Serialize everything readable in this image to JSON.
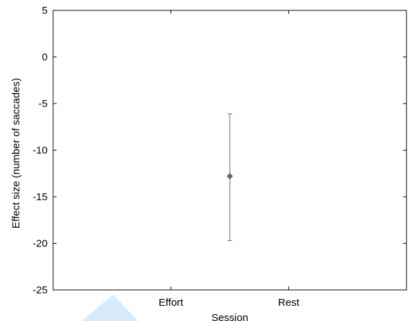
{
  "chart_data": {
    "type": "scatter",
    "title": "",
    "xlabel": "Session",
    "ylabel": "Effect size (number of saccades)",
    "categories": [
      "Effort",
      "Rest"
    ],
    "ylim": [
      -25,
      5
    ],
    "yticks": [
      5,
      0,
      -5,
      -10,
      -15,
      -20,
      -25
    ],
    "grid": false,
    "series": [
      {
        "x": 1.5,
        "y": -12.8,
        "error_low": -19.7,
        "error_high": -6.1,
        "marker": "diamond",
        "color": "#666666"
      }
    ]
  },
  "colors": {
    "marker": "#666666",
    "axis": "#000000",
    "overlay_triangle": "#d6ecfa"
  }
}
